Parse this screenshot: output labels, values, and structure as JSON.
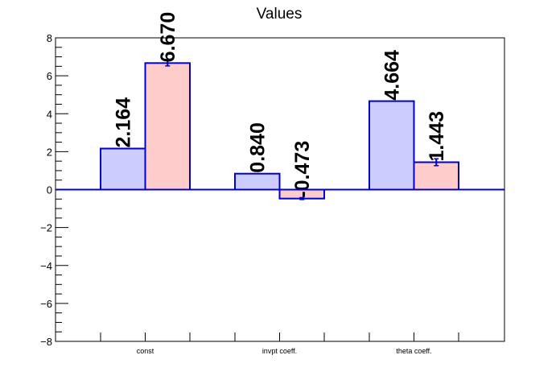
{
  "chart_data": {
    "type": "bar",
    "title": "Values",
    "xlabel": "",
    "ylabel": "",
    "categories": [
      "const",
      "invpt coeff.",
      "theta coeff."
    ],
    "series": [
      {
        "values": [
          2.164,
          0.84,
          4.664
        ],
        "errors": [
          0,
          0,
          0
        ],
        "labels": [
          "2.164",
          "0.840",
          "4.664"
        ],
        "fill": "#ccccff",
        "stroke": "#0000cc"
      },
      {
        "values": [
          6.67,
          -0.473,
          1.443
        ],
        "errors": [
          0.15,
          0.05,
          0.18
        ],
        "labels": [
          "6.670",
          "-0.473",
          "1.443"
        ],
        "fill": "#ffcccc",
        "stroke": "#0000cc"
      }
    ],
    "ylim": [
      -8,
      8
    ],
    "yticks": [
      -8,
      -6,
      -4,
      -2,
      0,
      2,
      4,
      6,
      8
    ],
    "ytick_labels": [
      "−8",
      "−6",
      "−4",
      "−2",
      "0",
      "2",
      "4",
      "6",
      "8"
    ],
    "grid": false,
    "legend": "none",
    "frame_color": "#000000",
    "axis_line_color": "#0000cc"
  }
}
